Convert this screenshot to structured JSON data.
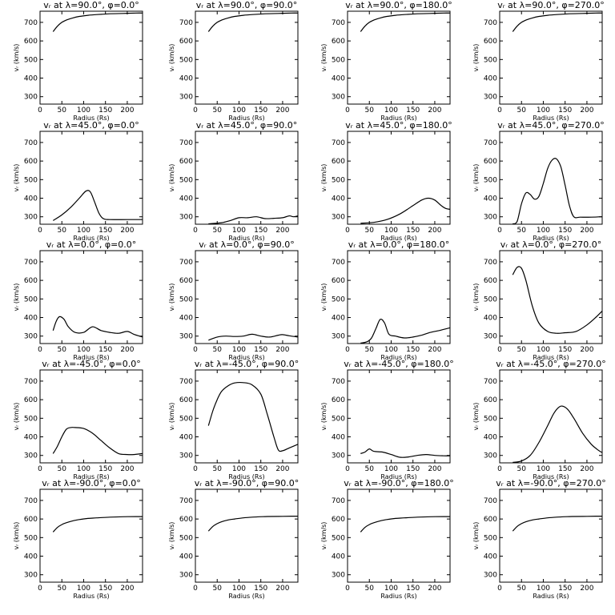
{
  "figure": {
    "xlabel": "Radius (Rs)",
    "ylabel": "vᵣ (km/s)"
  },
  "chart_data": [
    {
      "type": "line",
      "title": "vᵣ at λ=90.0°, φ=0.0°",
      "xlabel": "Radius (Rs)",
      "ylabel": "vᵣ (km/s)",
      "xlim": [
        0,
        235
      ],
      "ylim": [
        260,
        760
      ],
      "xticks": [
        0,
        50,
        100,
        150,
        200
      ],
      "yticks": [
        300,
        400,
        500,
        600,
        700
      ],
      "x": [
        30,
        40,
        50,
        60,
        75,
        90,
        110,
        130,
        160,
        190,
        220,
        235
      ],
      "y": [
        650,
        680,
        700,
        712,
        724,
        732,
        738,
        742,
        746,
        748,
        750,
        750
      ]
    },
    {
      "type": "line",
      "title": "vᵣ at λ=90.0°, φ=90.0°",
      "xlabel": "Radius (Rs)",
      "ylabel": "vᵣ (km/s)",
      "xlim": [
        0,
        235
      ],
      "ylim": [
        260,
        760
      ],
      "xticks": [
        0,
        50,
        100,
        150,
        200
      ],
      "yticks": [
        300,
        400,
        500,
        600,
        700
      ],
      "x": [
        30,
        40,
        50,
        60,
        75,
        90,
        110,
        130,
        160,
        190,
        220,
        235
      ],
      "y": [
        650,
        680,
        700,
        712,
        724,
        732,
        738,
        742,
        746,
        748,
        750,
        750
      ]
    },
    {
      "type": "line",
      "title": "vᵣ at λ=90.0°, φ=180.0°",
      "xlabel": "Radius (Rs)",
      "ylabel": "vᵣ (km/s)",
      "xlim": [
        0,
        235
      ],
      "ylim": [
        260,
        760
      ],
      "xticks": [
        0,
        50,
        100,
        150,
        200
      ],
      "yticks": [
        300,
        400,
        500,
        600,
        700
      ],
      "x": [
        30,
        40,
        50,
        60,
        75,
        90,
        110,
        130,
        160,
        190,
        220,
        235
      ],
      "y": [
        650,
        680,
        700,
        712,
        724,
        732,
        738,
        742,
        746,
        748,
        750,
        750
      ]
    },
    {
      "type": "line",
      "title": "vᵣ at λ=90.0°, φ=270.0°",
      "xlabel": "Radius (Rs)",
      "ylabel": "vᵣ (km/s)",
      "xlim": [
        0,
        235
      ],
      "ylim": [
        260,
        760
      ],
      "xticks": [
        0,
        50,
        100,
        150,
        200
      ],
      "yticks": [
        300,
        400,
        500,
        600,
        700
      ],
      "x": [
        30,
        40,
        50,
        60,
        75,
        90,
        110,
        130,
        160,
        190,
        220,
        235
      ],
      "y": [
        650,
        680,
        700,
        712,
        724,
        732,
        738,
        742,
        746,
        748,
        750,
        750
      ]
    },
    {
      "type": "line",
      "title": "vᵣ at λ=45.0°, φ=0.0°",
      "xlabel": "Radius (Rs)",
      "ylabel": "vᵣ (km/s)",
      "xlim": [
        0,
        235
      ],
      "ylim": [
        260,
        760
      ],
      "xticks": [
        0,
        50,
        100,
        150,
        200
      ],
      "yticks": [
        300,
        400,
        500,
        600,
        700
      ],
      "x": [
        30,
        50,
        70,
        90,
        105,
        115,
        125,
        135,
        145,
        160,
        200,
        235
      ],
      "y": [
        280,
        310,
        350,
        400,
        438,
        435,
        380,
        320,
        290,
        285,
        285,
        285
      ]
    },
    {
      "type": "line",
      "title": "vᵣ at λ=45.0°, φ=90.0°",
      "xlabel": "Radius (Rs)",
      "ylabel": "vᵣ (km/s)",
      "xlim": [
        0,
        235
      ],
      "ylim": [
        260,
        760
      ],
      "xticks": [
        0,
        50,
        100,
        150,
        200
      ],
      "yticks": [
        300,
        400,
        500,
        600,
        700
      ],
      "x": [
        30,
        60,
        80,
        100,
        120,
        140,
        160,
        180,
        200,
        215,
        225,
        235
      ],
      "y": [
        262,
        268,
        280,
        295,
        295,
        300,
        290,
        292,
        295,
        305,
        300,
        305
      ]
    },
    {
      "type": "line",
      "title": "vᵣ at λ=45.0°, φ=180.0°",
      "xlabel": "Radius (Rs)",
      "ylabel": "vᵣ (km/s)",
      "xlim": [
        0,
        235
      ],
      "ylim": [
        260,
        760
      ],
      "xticks": [
        0,
        50,
        100,
        150,
        200
      ],
      "yticks": [
        300,
        400,
        500,
        600,
        700
      ],
      "x": [
        30,
        60,
        90,
        120,
        150,
        170,
        185,
        200,
        215,
        225,
        235
      ],
      "y": [
        265,
        270,
        285,
        315,
        360,
        390,
        400,
        390,
        360,
        345,
        340
      ]
    },
    {
      "type": "line",
      "title": "vᵣ at λ=45.0°, φ=270.0°",
      "xlabel": "Radius (Rs)",
      "ylabel": "vᵣ (km/s)",
      "xlim": [
        0,
        235
      ],
      "ylim": [
        260,
        760
      ],
      "xticks": [
        0,
        50,
        100,
        150,
        200
      ],
      "yticks": [
        300,
        400,
        500,
        600,
        700
      ],
      "x": [
        30,
        40,
        50,
        60,
        70,
        80,
        90,
        100,
        110,
        120,
        130,
        140,
        150,
        160,
        170,
        185,
        210,
        235
      ],
      "y": [
        262,
        275,
        370,
        428,
        420,
        395,
        410,
        480,
        560,
        605,
        612,
        570,
        470,
        360,
        300,
        298,
        298,
        300
      ]
    },
    {
      "type": "line",
      "title": "vᵣ at λ=0.0°, φ=0.0°",
      "xlabel": "Radius (Rs)",
      "ylabel": "vᵣ (km/s)",
      "xlim": [
        0,
        235
      ],
      "ylim": [
        260,
        760
      ],
      "xticks": [
        0,
        50,
        100,
        150,
        200
      ],
      "yticks": [
        300,
        400,
        500,
        600,
        700
      ],
      "x": [
        30,
        37,
        45,
        55,
        65,
        80,
        100,
        120,
        140,
        160,
        180,
        200,
        215,
        235
      ],
      "y": [
        330,
        380,
        405,
        390,
        350,
        320,
        320,
        350,
        330,
        320,
        315,
        325,
        310,
        295
      ]
    },
    {
      "type": "line",
      "title": "vᵣ at λ=0.0°, φ=90.0°",
      "xlabel": "Radius (Rs)",
      "ylabel": "vᵣ (km/s)",
      "xlim": [
        0,
        235
      ],
      "ylim": [
        260,
        760
      ],
      "xticks": [
        0,
        50,
        100,
        150,
        200
      ],
      "yticks": [
        300,
        400,
        500,
        600,
        700
      ],
      "x": [
        30,
        50,
        70,
        90,
        110,
        130,
        150,
        170,
        190,
        200,
        215,
        235
      ],
      "y": [
        278,
        295,
        300,
        298,
        300,
        310,
        300,
        295,
        305,
        308,
        302,
        295
      ]
    },
    {
      "type": "line",
      "title": "vᵣ at λ=0.0°, φ=180.0°",
      "xlabel": "Radius (Rs)",
      "ylabel": "vᵣ (km/s)",
      "xlim": [
        0,
        235
      ],
      "ylim": [
        260,
        760
      ],
      "xticks": [
        0,
        50,
        100,
        150,
        200
      ],
      "yticks": [
        300,
        400,
        500,
        600,
        700
      ],
      "x": [
        30,
        45,
        55,
        65,
        75,
        85,
        95,
        110,
        130,
        150,
        170,
        190,
        210,
        235
      ],
      "y": [
        262,
        270,
        290,
        340,
        390,
        370,
        310,
        300,
        290,
        295,
        305,
        320,
        330,
        345
      ]
    },
    {
      "type": "line",
      "title": "vᵣ at λ=0.0°, φ=270.0°",
      "xlabel": "Radius (Rs)",
      "ylabel": "vᵣ (km/s)",
      "xlim": [
        0,
        235
      ],
      "ylim": [
        260,
        760
      ],
      "xticks": [
        0,
        50,
        100,
        150,
        200
      ],
      "yticks": [
        300,
        400,
        500,
        600,
        700
      ],
      "x": [
        30,
        40,
        50,
        60,
        75,
        90,
        110,
        130,
        150,
        175,
        200,
        220,
        235
      ],
      "y": [
        630,
        670,
        665,
        600,
        460,
        370,
        325,
        315,
        318,
        325,
        360,
        400,
        435
      ]
    },
    {
      "type": "line",
      "title": "vᵣ at λ=-45.0°, φ=0.0°",
      "xlabel": "Radius (Rs)",
      "ylabel": "vᵣ (km/s)",
      "xlim": [
        0,
        235
      ],
      "ylim": [
        260,
        760
      ],
      "xticks": [
        0,
        50,
        100,
        150,
        200
      ],
      "yticks": [
        300,
        400,
        500,
        600,
        700
      ],
      "x": [
        30,
        40,
        50,
        60,
        70,
        80,
        100,
        120,
        140,
        160,
        180,
        200,
        215,
        235
      ],
      "y": [
        310,
        350,
        400,
        440,
        450,
        450,
        445,
        420,
        380,
        340,
        310,
        305,
        305,
        310
      ]
    },
    {
      "type": "line",
      "title": "vᵣ at λ=-45.0°, φ=90.0°",
      "xlabel": "Radius (Rs)",
      "ylabel": "vᵣ (km/s)",
      "xlim": [
        0,
        235
      ],
      "ylim": [
        260,
        760
      ],
      "xticks": [
        0,
        50,
        100,
        150,
        200
      ],
      "yticks": [
        300,
        400,
        500,
        600,
        700
      ],
      "x": [
        30,
        40,
        50,
        60,
        75,
        90,
        110,
        130,
        150,
        165,
        180,
        190,
        200,
        215,
        235
      ],
      "y": [
        460,
        540,
        600,
        645,
        675,
        690,
        692,
        680,
        630,
        520,
        400,
        330,
        325,
        340,
        360
      ]
    },
    {
      "type": "line",
      "title": "vᵣ at λ=-45.0°, φ=180.0°",
      "xlabel": "Radius (Rs)",
      "ylabel": "vᵣ (km/s)",
      "xlim": [
        0,
        235
      ],
      "ylim": [
        260,
        760
      ],
      "xticks": [
        0,
        50,
        100,
        150,
        200
      ],
      "yticks": [
        300,
        400,
        500,
        600,
        700
      ],
      "x": [
        30,
        40,
        50,
        60,
        80,
        100,
        120,
        140,
        160,
        180,
        200,
        220,
        235
      ],
      "y": [
        310,
        318,
        335,
        322,
        318,
        305,
        290,
        292,
        300,
        305,
        300,
        298,
        298
      ]
    },
    {
      "type": "line",
      "title": "vᵣ at λ=-45.0°, φ=270.0°",
      "xlabel": "Radius (Rs)",
      "ylabel": "vᵣ (km/s)",
      "xlim": [
        0,
        235
      ],
      "ylim": [
        260,
        760
      ],
      "xticks": [
        0,
        50,
        100,
        150,
        200
      ],
      "yticks": [
        300,
        400,
        500,
        600,
        700
      ],
      "x": [
        30,
        50,
        70,
        90,
        110,
        125,
        140,
        155,
        170,
        190,
        210,
        225,
        235
      ],
      "y": [
        262,
        270,
        300,
        370,
        460,
        530,
        565,
        550,
        500,
        420,
        360,
        330,
        315
      ]
    },
    {
      "type": "line",
      "title": "vᵣ at λ=-90.0°, φ=0.0°",
      "xlabel": "Radius (Rs)",
      "ylabel": "vᵣ (km/s)",
      "xlim": [
        0,
        235
      ],
      "ylim": [
        260,
        760
      ],
      "xticks": [
        0,
        50,
        100,
        150,
        200
      ],
      "yticks": [
        300,
        400,
        500,
        600,
        700
      ],
      "x": [
        30,
        40,
        50,
        60,
        75,
        90,
        110,
        130,
        160,
        190,
        220,
        235
      ],
      "y": [
        530,
        555,
        570,
        580,
        590,
        597,
        603,
        606,
        610,
        612,
        613,
        613
      ]
    },
    {
      "type": "line",
      "title": "vᵣ at λ=-90.0°, φ=90.0°",
      "xlabel": "Radius (Rs)",
      "ylabel": "vᵣ (km/s)",
      "xlim": [
        0,
        235
      ],
      "ylim": [
        260,
        760
      ],
      "xticks": [
        0,
        50,
        100,
        150,
        200
      ],
      "yticks": [
        300,
        400,
        500,
        600,
        700
      ],
      "x": [
        30,
        40,
        50,
        60,
        75,
        90,
        110,
        130,
        160,
        190,
        220,
        235
      ],
      "y": [
        535,
        560,
        575,
        585,
        595,
        600,
        606,
        610,
        613,
        614,
        615,
        615
      ]
    },
    {
      "type": "line",
      "title": "vᵣ at λ=-90.0°, φ=180.0°",
      "xlabel": "Radius (Rs)",
      "ylabel": "vᵣ (km/s)",
      "xlim": [
        0,
        235
      ],
      "ylim": [
        260,
        760
      ],
      "xticks": [
        0,
        50,
        100,
        150,
        200
      ],
      "yticks": [
        300,
        400,
        500,
        600,
        700
      ],
      "x": [
        30,
        40,
        50,
        60,
        75,
        90,
        110,
        130,
        160,
        190,
        220,
        235
      ],
      "y": [
        530,
        555,
        570,
        580,
        590,
        597,
        603,
        606,
        610,
        612,
        613,
        613
      ]
    },
    {
      "type": "line",
      "title": "vᵣ at λ=-90.0°, φ=270.0°",
      "xlabel": "Radius (Rs)",
      "ylabel": "vᵣ (km/s)",
      "xlim": [
        0,
        235
      ],
      "ylim": [
        260,
        760
      ],
      "xticks": [
        0,
        50,
        100,
        150,
        200
      ],
      "yticks": [
        300,
        400,
        500,
        600,
        700
      ],
      "x": [
        30,
        40,
        50,
        60,
        75,
        90,
        110,
        130,
        160,
        190,
        220,
        235
      ],
      "y": [
        535,
        560,
        575,
        585,
        595,
        600,
        606,
        610,
        613,
        614,
        615,
        615
      ]
    }
  ]
}
